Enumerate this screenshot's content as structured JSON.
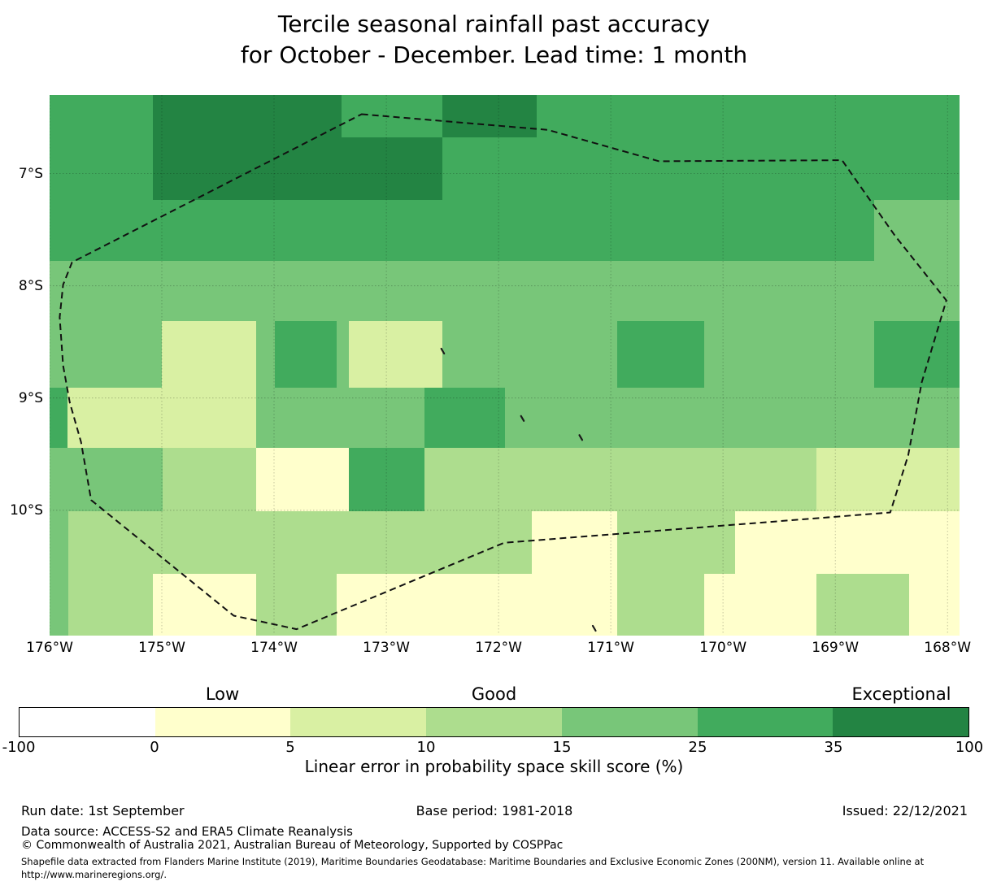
{
  "title": {
    "line1": "Tercile seasonal rainfall past accuracy",
    "line2": "for October - December. Lead time: 1 month"
  },
  "chart_data": {
    "type": "heatmap",
    "title": "Tercile seasonal rainfall past accuracy for October - December. Lead time: 1 month",
    "grid_on": true,
    "x_axis": {
      "ticks": [
        {
          "label": "176°W",
          "lon": 176
        },
        {
          "label": "175°W",
          "lon": 175
        },
        {
          "label": "174°W",
          "lon": 174
        },
        {
          "label": "173°W",
          "lon": 173
        },
        {
          "label": "172°W",
          "lon": 172
        },
        {
          "label": "171°W",
          "lon": 171
        },
        {
          "label": "170°W",
          "lon": 170
        },
        {
          "label": "169°W",
          "lon": 169
        },
        {
          "label": "168°W",
          "lon": 168
        }
      ]
    },
    "y_axis": {
      "ticks": [
        {
          "label": "7°S",
          "lat": 7
        },
        {
          "label": "8°S",
          "lat": 8
        },
        {
          "label": "9°S",
          "lat": 9
        },
        {
          "label": "10°S",
          "lat": 10
        }
      ]
    },
    "grid": {
      "lon_range": [
        176.0,
        167.9
      ],
      "lat_range": [
        6.3,
        11.11
      ],
      "rows": [
        {
          "lat": [
            6.3,
            6.67
          ],
          "segments": [
            {
              "lon": [
                176.0,
                175.09
              ],
              "bin": "M"
            },
            {
              "lon": [
                175.09,
                173.41
              ],
              "bin": "D"
            },
            {
              "lon": [
                173.41,
                172.51
              ],
              "bin": "M"
            },
            {
              "lon": [
                172.51,
                171.67
              ],
              "bin": "D"
            },
            {
              "lon": [
                171.67,
                167.9
              ],
              "bin": "M"
            }
          ]
        },
        {
          "lat": [
            6.67,
            7.23
          ],
          "segments": [
            {
              "lon": [
                176.0,
                175.09
              ],
              "bin": "M"
            },
            {
              "lon": [
                175.09,
                172.51
              ],
              "bin": "D"
            },
            {
              "lon": [
                172.51,
                167.9
              ],
              "bin": "M"
            }
          ]
        },
        {
          "lat": [
            7.23,
            7.77
          ],
          "segments": [
            {
              "lon": [
                176.0,
                168.66
              ],
              "bin": "M"
            },
            {
              "lon": [
                168.66,
                167.9
              ],
              "bin": "ML"
            }
          ]
        },
        {
          "lat": [
            7.77,
            8.31
          ],
          "segments": [
            {
              "lon": [
                176.0,
                167.9
              ],
              "bin": "ML"
            }
          ]
        },
        {
          "lat": [
            8.31,
            8.9
          ],
          "segments": [
            {
              "lon": [
                176.0,
                175.01
              ],
              "bin": "ML"
            },
            {
              "lon": [
                175.01,
                174.17
              ],
              "bin": "YG"
            },
            {
              "lon": [
                174.17,
                174.0
              ],
              "bin": "ML"
            },
            {
              "lon": [
                174.0,
                173.45
              ],
              "bin": "M"
            },
            {
              "lon": [
                173.45,
                173.34
              ],
              "bin": "ML"
            },
            {
              "lon": [
                173.34,
                172.51
              ],
              "bin": "YG"
            },
            {
              "lon": [
                172.51,
                170.95
              ],
              "bin": "ML"
            },
            {
              "lon": [
                170.95,
                170.18
              ],
              "bin": "M"
            },
            {
              "lon": [
                170.18,
                168.66
              ],
              "bin": "ML"
            },
            {
              "lon": [
                168.66,
                167.9
              ],
              "bin": "M"
            }
          ]
        },
        {
          "lat": [
            8.9,
            9.44
          ],
          "segments": [
            {
              "lon": [
                176.0,
                175.85
              ],
              "bin": "M"
            },
            {
              "lon": [
                175.85,
                174.17
              ],
              "bin": "YG"
            },
            {
              "lon": [
                174.17,
                172.67
              ],
              "bin": "ML"
            },
            {
              "lon": [
                172.67,
                171.95
              ],
              "bin": "M"
            },
            {
              "lon": [
                171.95,
                167.9
              ],
              "bin": "ML"
            }
          ]
        },
        {
          "lat": [
            9.44,
            10.0
          ],
          "segments": [
            {
              "lon": [
                176.0,
                175.0
              ],
              "bin": "ML"
            },
            {
              "lon": [
                175.0,
                174.17
              ],
              "bin": "LG"
            },
            {
              "lon": [
                174.17,
                173.34
              ],
              "bin": "PY"
            },
            {
              "lon": [
                173.34,
                172.67
              ],
              "bin": "M"
            },
            {
              "lon": [
                172.67,
                169.18
              ],
              "bin": "LG"
            },
            {
              "lon": [
                169.18,
                167.9
              ],
              "bin": "YG"
            }
          ]
        },
        {
          "lat": [
            10.0,
            10.56
          ],
          "segments": [
            {
              "lon": [
                176.0,
                175.84
              ],
              "bin": "ML"
            },
            {
              "lon": [
                175.84,
                171.71
              ],
              "bin": "LG"
            },
            {
              "lon": [
                171.71,
                170.95
              ],
              "bin": "PY"
            },
            {
              "lon": [
                170.95,
                169.9
              ],
              "bin": "LG"
            },
            {
              "lon": [
                169.9,
                167.9
              ],
              "bin": "PY"
            }
          ]
        },
        {
          "lat": [
            10.56,
            11.11
          ],
          "segments": [
            {
              "lon": [
                176.0,
                175.84
              ],
              "bin": "ML"
            },
            {
              "lon": [
                175.84,
                175.09
              ],
              "bin": "LG"
            },
            {
              "lon": [
                175.09,
                174.17
              ],
              "bin": "PY"
            },
            {
              "lon": [
                174.17,
                173.45
              ],
              "bin": "LG"
            },
            {
              "lon": [
                173.45,
                170.95
              ],
              "bin": "PY"
            },
            {
              "lon": [
                170.95,
                170.18
              ],
              "bin": "LG"
            },
            {
              "lon": [
                170.18,
                169.18
              ],
              "bin": "PY"
            },
            {
              "lon": [
                169.18,
                168.35
              ],
              "bin": "LG"
            },
            {
              "lon": [
                168.35,
                167.9
              ],
              "bin": "PY"
            }
          ]
        }
      ]
    },
    "colorbar": {
      "axis_label": "Linear error in probability space skill score (%)",
      "category_labels": [
        {
          "text": "Low",
          "segment_index": 1
        },
        {
          "text": "Good",
          "segment_index": 3
        },
        {
          "text": "Exceptional",
          "segment_index": 6
        }
      ],
      "tick_labels": [
        "-100",
        "0",
        "5",
        "10",
        "15",
        "25",
        "35",
        "100"
      ],
      "bins": [
        {
          "code": "W",
          "label": "-100 to 0",
          "color": "#ffffff"
        },
        {
          "code": "PY",
          "label": "0 to 5",
          "color": "#ffffcc"
        },
        {
          "code": "YG",
          "label": "5 to 10",
          "color": "#d9f0a3"
        },
        {
          "code": "LG",
          "label": "10 to 15",
          "color": "#addd8e"
        },
        {
          "code": "ML",
          "label": "15 to 25",
          "color": "#78c679"
        },
        {
          "code": "M",
          "label": "25 to 35",
          "color": "#41ab5d"
        },
        {
          "code": "D",
          "label": "35 to 100",
          "color": "#238443"
        }
      ]
    },
    "eez_boundary": [
      [
        173.22,
        6.47
      ],
      [
        171.56,
        6.61
      ],
      [
        170.57,
        6.89
      ],
      [
        168.94,
        6.88
      ],
      [
        168.47,
        7.55
      ],
      [
        168.01,
        8.13
      ],
      [
        168.23,
        8.86
      ],
      [
        168.35,
        9.51
      ],
      [
        168.51,
        10.02
      ],
      [
        171.95,
        10.29
      ],
      [
        173.8,
        11.06
      ],
      [
        174.17,
        10.98
      ],
      [
        174.36,
        10.94
      ],
      [
        175.63,
        9.91
      ],
      [
        175.72,
        9.39
      ],
      [
        175.82,
        9.04
      ],
      [
        175.88,
        8.71
      ],
      [
        175.91,
        8.28
      ],
      [
        175.88,
        7.99
      ],
      [
        175.8,
        7.79
      ]
    ],
    "islands": [
      [
        172.51,
        8.56
      ],
      [
        171.8,
        9.16
      ],
      [
        171.28,
        9.33
      ],
      [
        171.16,
        11.03
      ]
    ]
  },
  "footer": {
    "run_date": "Run date: 1st September",
    "base_period": "Base period: 1981-2018",
    "issued": "Issued: 22/12/2021",
    "data_source": "Data source: ACCESS-S2 and ERA5 Climate Reanalysis",
    "copyright": "© Commonwealth of Australia 2021, Australian Bureau of Meteorology, Supported by COSPPac",
    "shapefile_note": "Shapefile data extracted from Flanders Marine Institute (2019), Maritime Boundaries Geodatabase: Maritime Boundaries and Exclusive Economic Zones (200NM), version 11. Available online at http://www.marineregions.org/."
  }
}
